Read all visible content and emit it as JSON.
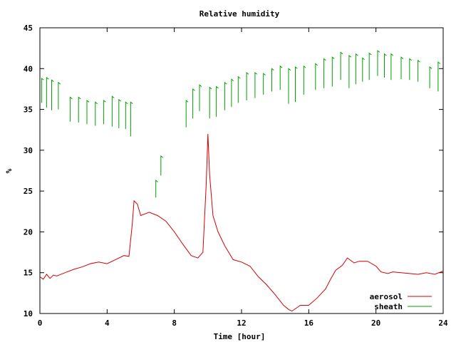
{
  "chart_data": {
    "type": "line",
    "title": "Relative humidity",
    "xlabel": "Time [hour]",
    "ylabel": "%",
    "xlim": [
      0,
      24
    ],
    "ylim": [
      10,
      45
    ],
    "xticks": [
      0,
      4,
      8,
      12,
      16,
      20,
      24
    ],
    "yticks": [
      10,
      15,
      20,
      25,
      30,
      35,
      40,
      45
    ],
    "grid": false,
    "legend": "bottom-right",
    "series": [
      {
        "name": "aerosol",
        "color": "#d40000",
        "style": "line",
        "x": [
          0,
          0.2,
          0.4,
          0.6,
          0.8,
          1.0,
          1.5,
          2.0,
          2.5,
          3.0,
          3.5,
          4.0,
          4.5,
          5.0,
          5.3,
          5.5,
          5.6,
          5.8,
          6.0,
          6.5,
          7.0,
          7.5,
          8.0,
          8.5,
          9.0,
          9.4,
          9.7,
          9.9,
          10.0,
          10.1,
          10.3,
          10.6,
          11.0,
          11.5,
          12.0,
          12.5,
          13.0,
          13.5,
          14.0,
          14.5,
          14.8,
          15.0,
          15.5,
          16.0,
          16.5,
          17.0,
          17.3,
          17.6,
          18.0,
          18.3,
          18.7,
          19.0,
          19.5,
          20.0,
          20.3,
          20.7,
          21.0,
          21.5,
          22.0,
          22.5,
          23.0,
          23.5,
          24.0
        ],
        "y": [
          14.5,
          14.2,
          14.8,
          14.3,
          14.7,
          14.6,
          15.0,
          15.4,
          15.7,
          16.1,
          16.3,
          16.1,
          16.6,
          17.1,
          17.0,
          21.0,
          23.8,
          23.4,
          22.0,
          22.4,
          22.0,
          21.3,
          20.0,
          18.5,
          17.1,
          16.8,
          17.5,
          26.0,
          32.0,
          27.0,
          22.0,
          20.0,
          18.3,
          16.6,
          16.3,
          15.8,
          14.5,
          13.5,
          12.3,
          11.0,
          10.5,
          10.3,
          11.0,
          11.0,
          11.9,
          13.0,
          14.2,
          15.3,
          15.9,
          16.8,
          16.2,
          16.4,
          16.4,
          15.8,
          15.1,
          14.9,
          15.1,
          15.0,
          14.9,
          14.8,
          15.0,
          14.8,
          15.2
        ]
      },
      {
        "name": "sheath",
        "color": "#00a000",
        "style": "sawtooth",
        "x": [
          0.1,
          0.4,
          0.7,
          1.1,
          1.8,
          2.3,
          2.8,
          3.3,
          3.8,
          4.3,
          4.7,
          5.1,
          5.4,
          6.9,
          7.2,
          8.7,
          9.1,
          9.5,
          10.1,
          10.5,
          11.0,
          11.4,
          11.8,
          12.3,
          12.8,
          13.3,
          13.8,
          14.3,
          14.8,
          15.2,
          15.7,
          16.4,
          16.9,
          17.4,
          17.9,
          18.4,
          18.8,
          19.2,
          19.6,
          20.1,
          20.5,
          20.9,
          21.5,
          22.0,
          22.5,
          23.2,
          23.7
        ],
        "y_top": [
          38.8,
          38.9,
          38.6,
          38.3,
          36.5,
          36.5,
          36.1,
          35.9,
          36.1,
          36.6,
          36.2,
          35.9,
          35.9,
          26.3,
          29.3,
          36.1,
          37.5,
          38.0,
          37.7,
          37.8,
          38.3,
          38.7,
          39.0,
          39.5,
          39.5,
          39.4,
          40.0,
          40.3,
          40.0,
          40.2,
          40.3,
          40.6,
          41.2,
          41.4,
          42.0,
          41.6,
          41.8,
          41.3,
          41.9,
          42.2,
          41.8,
          41.8,
          41.4,
          41.2,
          41.0,
          40.2,
          40.8
        ],
        "y_bottom": [
          35.8,
          35.2,
          34.9,
          35.0,
          33.5,
          33.4,
          33.2,
          33.0,
          33.2,
          32.9,
          32.7,
          32.6,
          31.7,
          24.2,
          26.9,
          32.8,
          33.9,
          34.8,
          33.9,
          34.1,
          34.9,
          35.3,
          35.8,
          36.1,
          36.4,
          36.8,
          37.2,
          37.4,
          35.7,
          35.9,
          36.8,
          37.4,
          37.6,
          37.8,
          38.6,
          37.6,
          38.1,
          38.4,
          38.6,
          39.1,
          38.9,
          38.6,
          38.7,
          38.6,
          38.4,
          37.6,
          37.2
        ]
      }
    ]
  }
}
